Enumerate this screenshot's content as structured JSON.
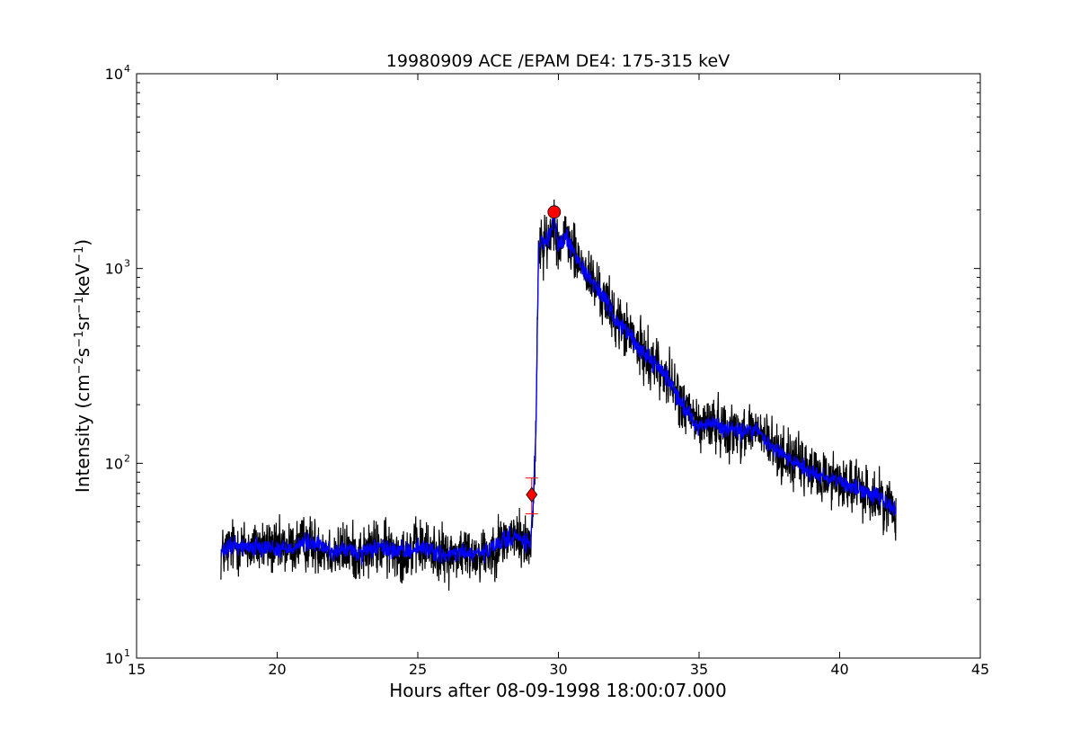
{
  "chart_data": {
    "type": "line",
    "title": "19980909 ACE /EPAM DE4: 175-315 keV",
    "xlabel": "Hours after 08-09-1998 18:00:07.000",
    "ylabel": {
      "parts": [
        {
          "t": "Intensity (cm",
          "sup": false
        },
        {
          "t": "−2",
          "sup": true
        },
        {
          "t": "s",
          "sup": false
        },
        {
          "t": "−1",
          "sup": true
        },
        {
          "t": "sr",
          "sup": false
        },
        {
          "t": "−1",
          "sup": true
        },
        {
          "t": "keV",
          "sup": false
        },
        {
          "t": "−1",
          "sup": true
        },
        {
          "t": ")",
          "sup": false
        }
      ]
    },
    "xlim": [
      15,
      45
    ],
    "ylim": [
      10,
      10000
    ],
    "yscale": "log",
    "grid": false,
    "xticks": [
      15,
      20,
      25,
      30,
      35,
      40,
      45
    ],
    "xtick_labels": [
      "15",
      "20",
      "25",
      "30",
      "35",
      "40",
      "45"
    ],
    "yticks": [
      10,
      100,
      1000,
      10000
    ],
    "ytick_labels": [
      {
        "base": "10",
        "exp": "1"
      },
      {
        "base": "10",
        "exp": "2"
      },
      {
        "base": "10",
        "exp": "3"
      },
      {
        "base": "10",
        "exp": "4"
      }
    ],
    "series": [
      {
        "color": "#000000",
        "style": "raw-noisy",
        "x": [
          18.0,
          18.2,
          18.5,
          19.0,
          19.5,
          20.0,
          20.5,
          21.0,
          21.5,
          22.0,
          22.5,
          23.0,
          23.5,
          24.0,
          24.5,
          25.0,
          25.5,
          26.0,
          26.5,
          27.0,
          27.5,
          28.0,
          28.5,
          29.0,
          29.1,
          29.2,
          29.25,
          29.3,
          29.4,
          29.5,
          29.7,
          29.85,
          30.0,
          30.3,
          30.6,
          31.0,
          31.5,
          32.0,
          32.5,
          33.0,
          33.5,
          34.0,
          34.5,
          35.0,
          35.5,
          36.0,
          36.5,
          37.0,
          37.5,
          38.0,
          38.5,
          39.0,
          39.5,
          40.0,
          40.5,
          41.0,
          41.5,
          42.0
        ],
        "y": [
          34,
          36,
          38,
          37,
          38,
          36,
          37,
          39,
          38,
          35,
          36,
          34,
          37,
          36,
          35,
          37,
          36,
          33,
          35,
          34,
          35,
          40,
          42,
          38,
          60,
          150,
          500,
          1200,
          1400,
          1300,
          1450,
          1900,
          1300,
          1450,
          1150,
          950,
          750,
          560,
          460,
          370,
          320,
          260,
          190,
          155,
          160,
          150,
          145,
          150,
          125,
          110,
          100,
          90,
          85,
          82,
          75,
          70,
          65,
          58
        ]
      },
      {
        "color": "#0000ff",
        "style": "smoothed",
        "x": [
          18.0,
          18.2,
          18.5,
          19.0,
          19.5,
          20.0,
          20.5,
          21.0,
          21.5,
          22.0,
          22.5,
          23.0,
          23.5,
          24.0,
          24.5,
          25.0,
          25.5,
          26.0,
          26.5,
          27.0,
          27.5,
          28.0,
          28.5,
          29.0,
          29.1,
          29.2,
          29.25,
          29.3,
          29.4,
          29.5,
          29.7,
          29.85,
          30.0,
          30.3,
          30.6,
          31.0,
          31.5,
          32.0,
          32.5,
          33.0,
          33.5,
          34.0,
          34.5,
          35.0,
          35.5,
          36.0,
          36.5,
          37.0,
          37.5,
          38.0,
          38.5,
          39.0,
          39.5,
          40.0,
          40.5,
          41.0,
          41.5,
          42.0
        ],
        "y": [
          34,
          36,
          38,
          37,
          38,
          36,
          37,
          39,
          38,
          35,
          36,
          34,
          37,
          36,
          35,
          37,
          36,
          33,
          35,
          34,
          35,
          40,
          42,
          38,
          60,
          150,
          500,
          1200,
          1400,
          1300,
          1450,
          1900,
          1300,
          1450,
          1150,
          950,
          750,
          560,
          460,
          370,
          320,
          260,
          190,
          155,
          160,
          150,
          145,
          150,
          125,
          110,
          100,
          90,
          85,
          82,
          75,
          70,
          65,
          58
        ]
      }
    ],
    "markers": [
      {
        "shape": "diamond",
        "x": 29.05,
        "y": 69,
        "color": "#ff0000",
        "error_y": [
          55,
          84
        ]
      },
      {
        "shape": "circle",
        "x": 29.85,
        "y": 1950,
        "color": "#ff0000"
      }
    ]
  }
}
